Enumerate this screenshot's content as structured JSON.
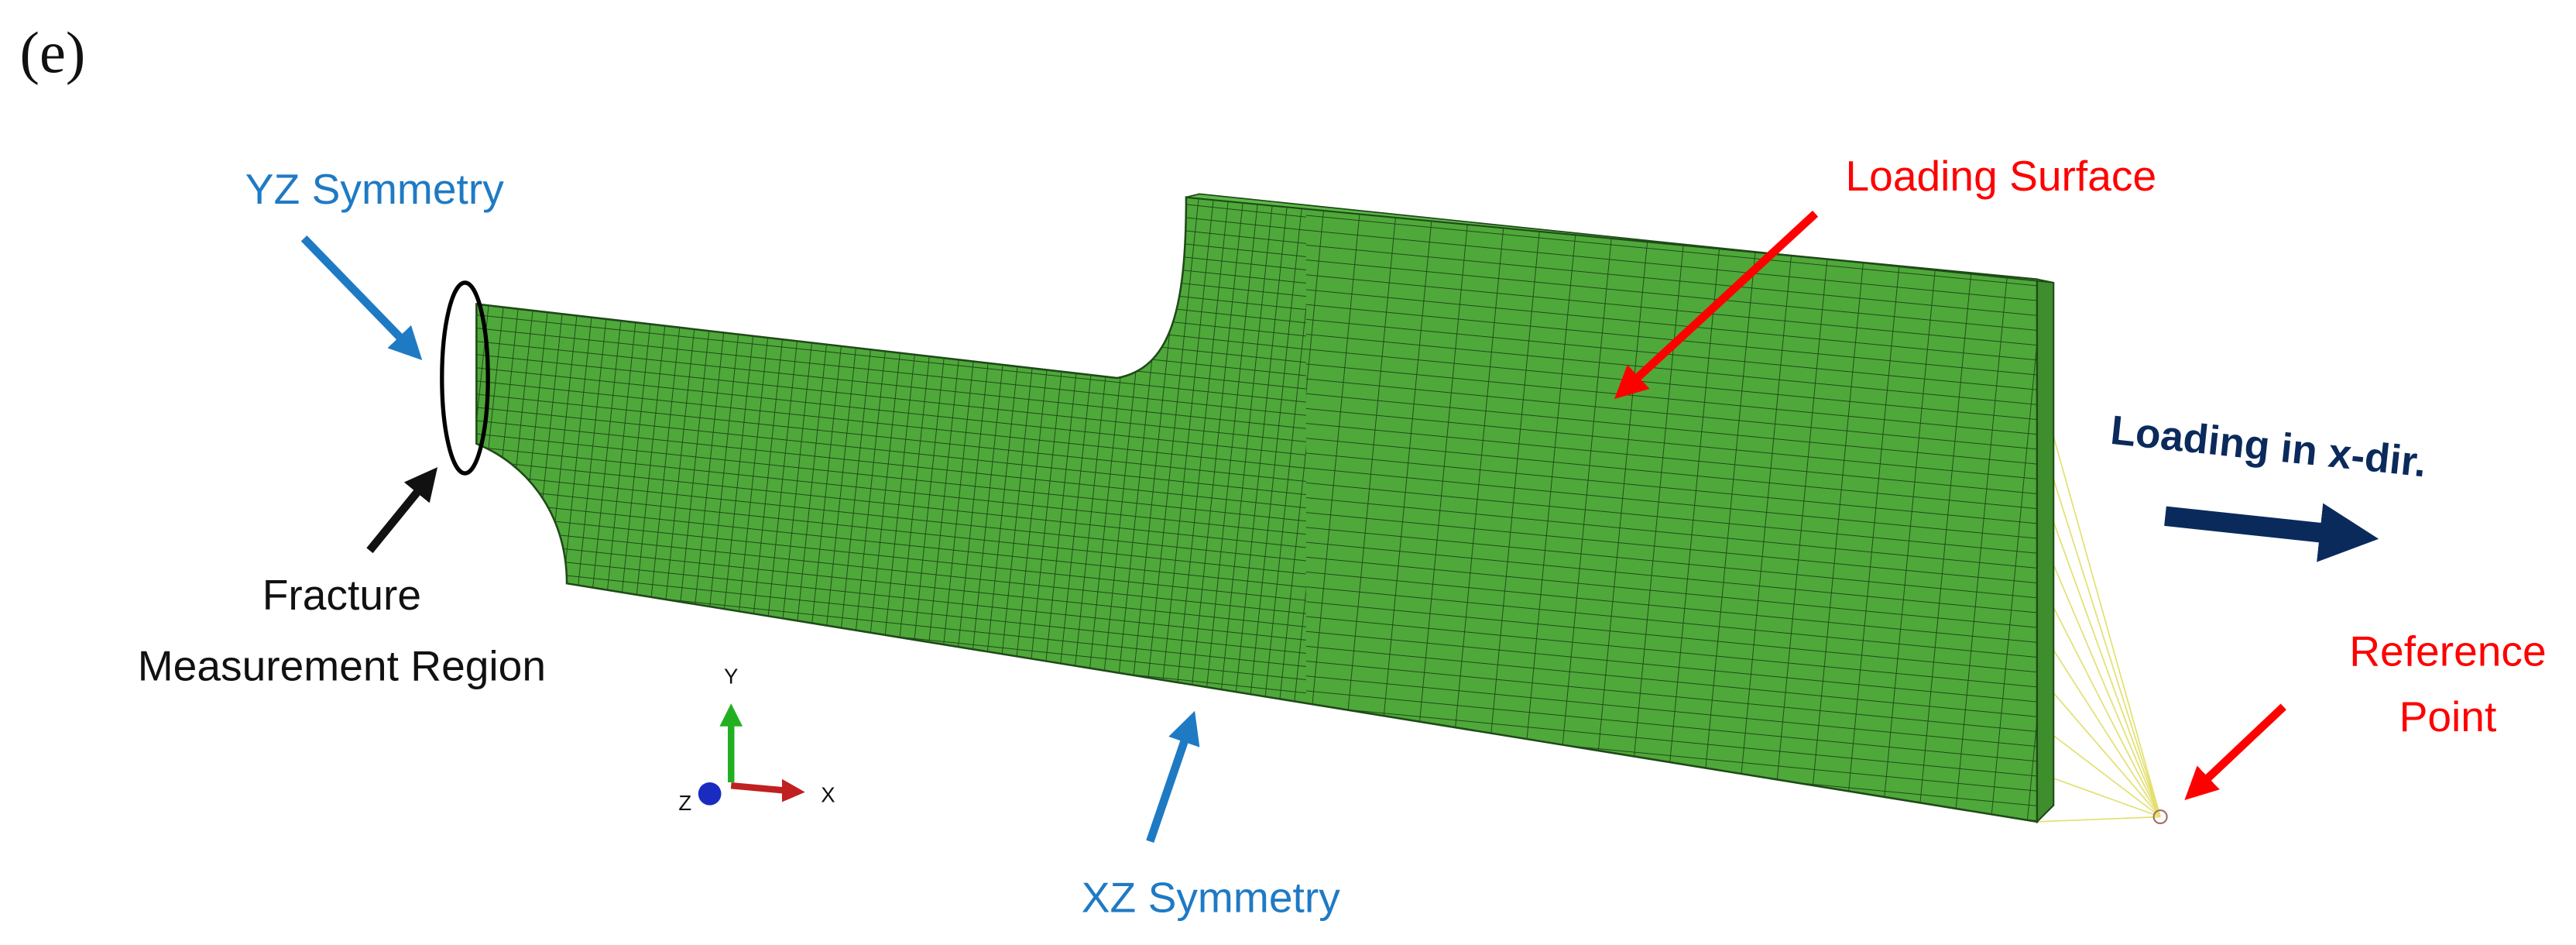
{
  "panel_label": "(e)",
  "annotations": {
    "yz_symmetry": "YZ Symmetry",
    "fracture_region": [
      "Fracture",
      "Measurement Region"
    ],
    "loading_surface": "Loading Surface",
    "loading_direction": "Loading in x-dir.",
    "reference_point": [
      "Reference",
      "Point"
    ],
    "xz_symmetry": "XZ Symmetry"
  },
  "axes": {
    "y": "Y",
    "x": "X",
    "z": "Z"
  }
}
